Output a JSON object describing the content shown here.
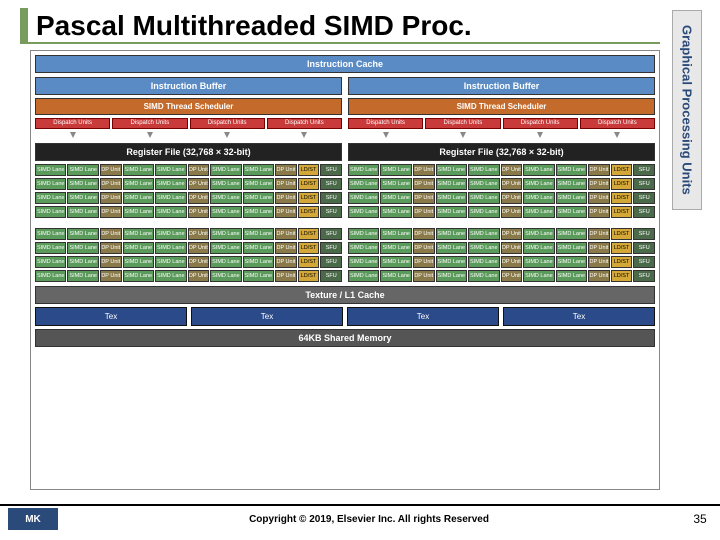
{
  "title": "Pascal Multithreaded SIMD Proc.",
  "side_label": "Graphical Processing Units",
  "diagram": {
    "instruction_cache": "Instruction Cache",
    "instruction_buffer": "Instruction Buffer",
    "scheduler": "SIMD Thread Scheduler",
    "dispatch": "Dispatch Units",
    "regfile": "Register File (32,768 × 32-bit)",
    "lane": {
      "simd": "SIMD Lane",
      "dp": "DP Unit",
      "ldst": "LD/ST",
      "sfu": "SFU"
    },
    "texture_cache": "Texture / L1 Cache",
    "tex": "Tex",
    "shared_mem": "64KB Shared Memory"
  },
  "colors": {
    "accent": "#7a9b5e",
    "cache": "#5a8bc4",
    "sched": "#c46a2a",
    "dispatch": "#c93a3a",
    "regfile": "#222222",
    "simd": "#5a9a5a",
    "dp": "#8a7a4a",
    "ldst": "#d4a838",
    "sfu": "#4a6a4a",
    "tex": "#2a4a8a",
    "shared": "#555555"
  },
  "layout": {
    "dispatch_per_half": 4,
    "lane_blocks": 2,
    "rows_per_block": 4,
    "pattern_groups": [
      [
        "simd",
        "simd",
        "dp"
      ],
      [
        "simd",
        "simd",
        "dp"
      ],
      [
        "simd",
        "simd",
        "dp"
      ],
      [
        "ldst"
      ],
      [
        "sfu"
      ]
    ],
    "tex_count": 4
  },
  "footer": {
    "logo": "MK",
    "copyright": "Copyright © 2019, Elsevier Inc. All rights Reserved",
    "page": "35"
  }
}
